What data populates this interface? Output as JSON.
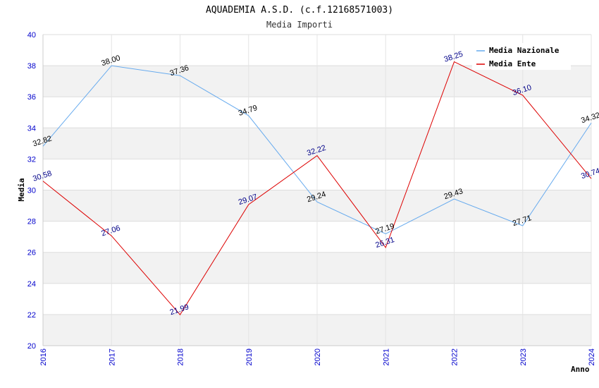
{
  "chart_data": {
    "type": "line",
    "title": "AQUADEMIA A.S.D. (c.f.12168571003)",
    "subtitle": "Media Importi",
    "xlabel": "Anno",
    "ylabel": "Media",
    "x": [
      "2016",
      "2017",
      "2018",
      "2019",
      "2020",
      "2021",
      "2022",
      "2023",
      "2024"
    ],
    "ylim": [
      20,
      40
    ],
    "yticks": [
      "20",
      "22",
      "24",
      "26",
      "28",
      "30",
      "32",
      "34",
      "36",
      "38",
      "40"
    ],
    "grid": true,
    "legend_position": "top-right",
    "series": [
      {
        "name": "Media Nazionale",
        "color": "#66aaee",
        "values": [
          32.82,
          38.0,
          37.36,
          34.79,
          29.24,
          27.19,
          29.43,
          27.71,
          34.32
        ],
        "labels": [
          "32.82",
          "38.00",
          "37.36",
          "34.79",
          "29.24",
          "27.19",
          "29.43",
          "27.71",
          "34.32"
        ]
      },
      {
        "name": "Media Ente",
        "color": "#dd0000",
        "values": [
          30.58,
          27.06,
          21.99,
          29.07,
          32.22,
          26.31,
          38.25,
          36.1,
          30.74
        ],
        "labels": [
          "30.58",
          "27.06",
          "21.99",
          "29.07",
          "32.22",
          "26.31",
          "38.25",
          "36.10",
          "30.74"
        ]
      }
    ]
  }
}
